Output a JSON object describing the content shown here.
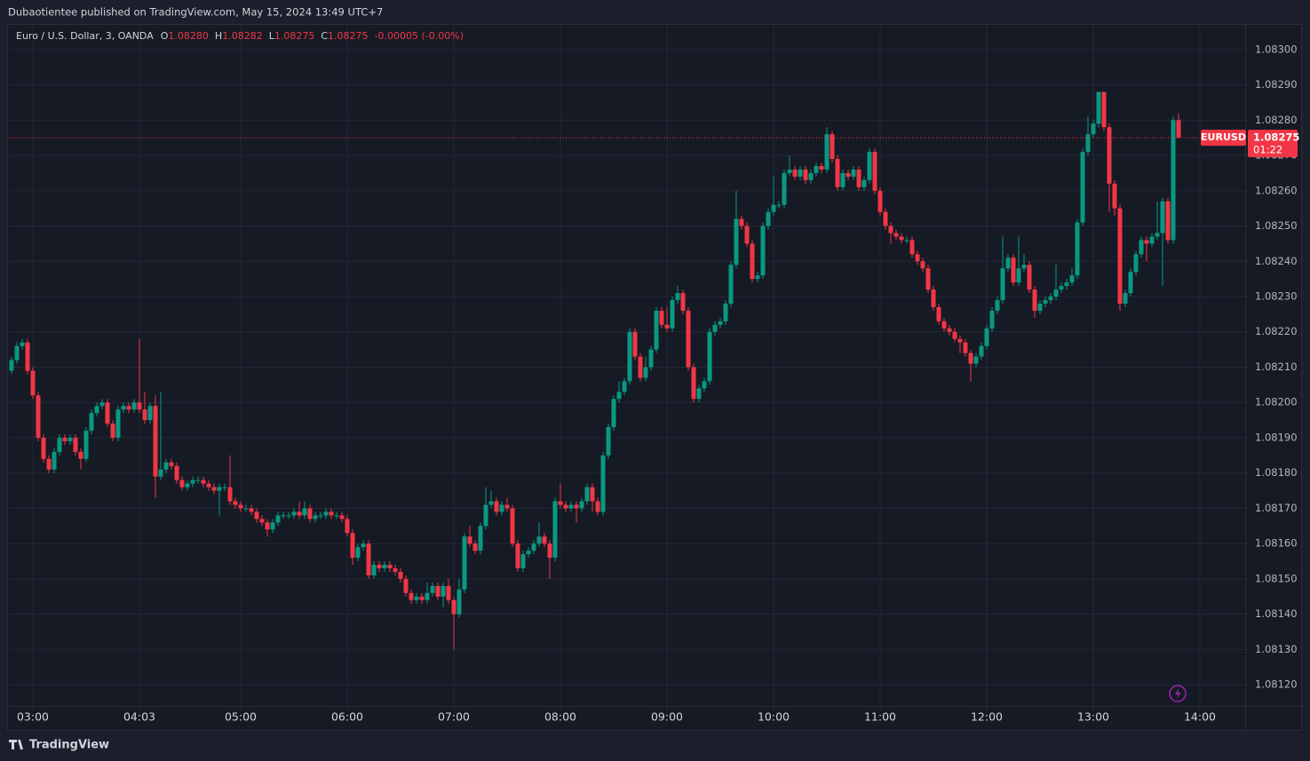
{
  "header": {
    "publisher": "Dubaotientee published on TradingView.com, May 15, 2024 13:49 UTC+7"
  },
  "chart_data": {
    "type": "candlestick",
    "title": "Euro / U.S. Dollar, 3, OANDA",
    "ohlc_legend": [
      {
        "label": "O",
        "value": "1.08280"
      },
      {
        "label": "H",
        "value": "1.08282"
      },
      {
        "label": "L",
        "value": "1.08275"
      },
      {
        "label": "C",
        "value": "1.08275"
      }
    ],
    "change": "-0.00005 (-0.00%)",
    "symbol": "EURUSD",
    "last_price": {
      "value": 1.08275,
      "label": "1.08275"
    },
    "countdown": "01:22",
    "up_color": "#089981",
    "down_color": "#f23645",
    "grid": true,
    "xlim": [
      -0.5,
      231.5
    ],
    "xticks": [
      {
        "value": 4,
        "label": "03:00"
      },
      {
        "value": 24,
        "label": "04:03"
      },
      {
        "value": 43,
        "label": "05:00"
      },
      {
        "value": 63,
        "label": "06:00"
      },
      {
        "value": 83,
        "label": "07:00"
      },
      {
        "value": 103,
        "label": "08:00"
      },
      {
        "value": 123,
        "label": "09:00"
      },
      {
        "value": 143,
        "label": "10:00"
      },
      {
        "value": 163,
        "label": "11:00"
      },
      {
        "value": 183,
        "label": "12:00"
      },
      {
        "value": 203,
        "label": "13:00"
      },
      {
        "value": 223,
        "label": "14:00"
      }
    ],
    "ylim": [
      1.08114,
      1.08307
    ],
    "yticks": [
      {
        "value": 1.0812,
        "label": "1.08120"
      },
      {
        "value": 1.0813,
        "label": "1.08130"
      },
      {
        "value": 1.0814,
        "label": "1.08140"
      },
      {
        "value": 1.0815,
        "label": "1.08150"
      },
      {
        "value": 1.0816,
        "label": "1.08160"
      },
      {
        "value": 1.0817,
        "label": "1.08170"
      },
      {
        "value": 1.0818,
        "label": "1.08180"
      },
      {
        "value": 1.0819,
        "label": "1.08190"
      },
      {
        "value": 1.082,
        "label": "1.08200"
      },
      {
        "value": 1.0821,
        "label": "1.08210"
      },
      {
        "value": 1.0822,
        "label": "1.08220"
      },
      {
        "value": 1.0823,
        "label": "1.08230"
      },
      {
        "value": 1.0824,
        "label": "1.08240"
      },
      {
        "value": 1.0825,
        "label": "1.08250"
      },
      {
        "value": 1.0826,
        "label": "1.08260"
      },
      {
        "value": 1.0827,
        "label": "1.08270"
      },
      {
        "value": 1.0828,
        "label": "1.08280"
      },
      {
        "value": 1.0829,
        "label": "1.08290"
      },
      {
        "value": 1.083,
        "label": "1.08300"
      }
    ],
    "open": [
      1.08209,
      1.08212,
      1.08216,
      1.08217,
      1.08209,
      1.08202,
      1.0819,
      1.08184,
      1.08181,
      1.08186,
      1.0819,
      1.08189,
      1.0819,
      1.08186,
      1.08184,
      1.08192,
      1.08197,
      1.08199,
      1.082,
      1.08194,
      1.0819,
      1.08198,
      1.08199,
      1.08198,
      1.082,
      1.08198,
      1.08195,
      1.08199,
      1.08179,
      1.08181,
      1.08183,
      1.08182,
      1.08178,
      1.08176,
      1.08177,
      1.08178,
      1.08178,
      1.08177,
      1.08176,
      1.08175,
      1.08176,
      1.08176,
      1.08172,
      1.08171,
      1.0817,
      1.0817,
      1.08169,
      1.08167,
      1.08166,
      1.08164,
      1.08166,
      1.08168,
      1.08168,
      1.08168,
      1.08169,
      1.08168,
      1.0817,
      1.08167,
      1.08168,
      1.08168,
      1.08169,
      1.08168,
      1.08168,
      1.08167,
      1.08163,
      1.08156,
      1.08159,
      1.0816,
      1.08151,
      1.08154,
      1.08153,
      1.08154,
      1.08153,
      1.08152,
      1.0815,
      1.08146,
      1.08144,
      1.08145,
      1.08144,
      1.08146,
      1.08148,
      1.08145,
      1.08148,
      1.08144,
      1.0814,
      1.08147,
      1.08162,
      1.0816,
      1.08158,
      1.08165,
      1.08171,
      1.08172,
      1.08169,
      1.08171,
      1.0817,
      1.0816,
      1.08153,
      1.08157,
      1.08158,
      1.0816,
      1.08162,
      1.0816,
      1.08156,
      1.08172,
      1.08171,
      1.0817,
      1.08171,
      1.0817,
      1.08172,
      1.08176,
      1.08172,
      1.08169,
      1.08185,
      1.08193,
      1.08201,
      1.08203,
      1.08206,
      1.0822,
      1.08213,
      1.08207,
      1.0821,
      1.08215,
      1.08226,
      1.08222,
      1.08221,
      1.08229,
      1.08231,
      1.08226,
      1.0821,
      1.08201,
      1.08204,
      1.08206,
      1.0822,
      1.08222,
      1.08223,
      1.08228,
      1.08239,
      1.08252,
      1.0825,
      1.08245,
      1.08235,
      1.08236,
      1.0825,
      1.08254,
      1.08256,
      1.08256,
      1.08265,
      1.08266,
      1.08264,
      1.08266,
      1.08263,
      1.08265,
      1.08267,
      1.08266,
      1.08276,
      1.08269,
      1.08261,
      1.08265,
      1.08264,
      1.08266,
      1.08261,
      1.08263,
      1.08271,
      1.0826,
      1.08254,
      1.0825,
      1.08248,
      1.08247,
      1.08246,
      1.08246,
      1.08242,
      1.0824,
      1.08238,
      1.08232,
      1.08227,
      1.08223,
      1.08221,
      1.0822,
      1.08218,
      1.08217,
      1.08214,
      1.08211,
      1.08213,
      1.08216,
      1.08221,
      1.08226,
      1.08229,
      1.08238,
      1.08241,
      1.08234,
      1.08238,
      1.08239,
      1.08232,
      1.08226,
      1.08228,
      1.08229,
      1.0823,
      1.08232,
      1.08233,
      1.08234,
      1.08236,
      1.08251,
      1.08271,
      1.08276,
      1.08279,
      1.08288,
      1.08278,
      1.08262,
      1.08255,
      1.08228,
      1.08231,
      1.08237,
      1.08242,
      1.08246,
      1.08245,
      1.08247,
      1.08248,
      1.08257,
      1.08246,
      1.0828
    ],
    "high": [
      1.08213,
      1.08217,
      1.08218,
      1.08218,
      1.0821,
      1.08203,
      1.08191,
      1.08185,
      1.08187,
      1.08191,
      1.08191,
      1.08191,
      1.08191,
      1.08187,
      1.08193,
      1.08198,
      1.082,
      1.08201,
      1.08201,
      1.08195,
      1.08199,
      1.082,
      1.082,
      1.08201,
      1.08218,
      1.08203,
      1.082,
      1.08202,
      1.08203,
      1.08184,
      1.08184,
      1.08183,
      1.08179,
      1.08178,
      1.08179,
      1.08179,
      1.08179,
      1.08178,
      1.08177,
      1.08177,
      1.08177,
      1.08185,
      1.08173,
      1.08172,
      1.08171,
      1.08171,
      1.0817,
      1.08168,
      1.08167,
      1.08167,
      1.08169,
      1.08169,
      1.08169,
      1.0817,
      1.08172,
      1.08172,
      1.08171,
      1.08169,
      1.08169,
      1.0817,
      1.0817,
      1.08169,
      1.08169,
      1.08168,
      1.08164,
      1.0816,
      1.08161,
      1.08161,
      1.08155,
      1.08155,
      1.08155,
      1.08155,
      1.08154,
      1.08153,
      1.08151,
      1.08147,
      1.08146,
      1.08146,
      1.08149,
      1.08149,
      1.08149,
      1.08149,
      1.0815,
      1.08145,
      1.0815,
      1.08163,
      1.08165,
      1.08161,
      1.08166,
      1.08176,
      1.08175,
      1.08173,
      1.08172,
      1.08173,
      1.08171,
      1.08161,
      1.08158,
      1.08159,
      1.08161,
      1.08166,
      1.08163,
      1.08161,
      1.08173,
      1.08177,
      1.08172,
      1.08172,
      1.08172,
      1.08173,
      1.08177,
      1.08177,
      1.08173,
      1.08186,
      1.08194,
      1.08202,
      1.08206,
      1.08207,
      1.08221,
      1.08221,
      1.08214,
      1.08213,
      1.08216,
      1.08227,
      1.08227,
      1.08227,
      1.0823,
      1.08233,
      1.08232,
      1.08227,
      1.08211,
      1.08205,
      1.08207,
      1.08221,
      1.08223,
      1.08224,
      1.08229,
      1.0824,
      1.0826,
      1.08253,
      1.08251,
      1.08246,
      1.08237,
      1.08251,
      1.08255,
      1.08264,
      1.08257,
      1.08266,
      1.0827,
      1.08267,
      1.08267,
      1.08267,
      1.08266,
      1.08268,
      1.08268,
      1.08278,
      1.08277,
      1.0827,
      1.08266,
      1.08266,
      1.08267,
      1.08267,
      1.08264,
      1.08272,
      1.08272,
      1.08261,
      1.08255,
      1.08251,
      1.08249,
      1.08248,
      1.08247,
      1.08247,
      1.08243,
      1.08241,
      1.08239,
      1.08233,
      1.08228,
      1.08224,
      1.08222,
      1.08221,
      1.08219,
      1.08218,
      1.08215,
      1.08214,
      1.08217,
      1.08222,
      1.08227,
      1.0823,
      1.08247,
      1.08242,
      1.08242,
      1.08247,
      1.08242,
      1.0824,
      1.08233,
      1.08229,
      1.0823,
      1.08231,
      1.08239,
      1.08234,
      1.08235,
      1.08238,
      1.08252,
      1.08272,
      1.08281,
      1.0828,
      1.08288,
      1.08288,
      1.08279,
      1.08263,
      1.08256,
      1.08232,
      1.08238,
      1.08243,
      1.08247,
      1.08247,
      1.08248,
      1.08257,
      1.08258,
      1.08258,
      1.08281,
      1.08282
    ],
    "low": [
      1.08208,
      1.08211,
      1.08215,
      1.08208,
      1.08201,
      1.08189,
      1.08183,
      1.0818,
      1.0818,
      1.08185,
      1.08188,
      1.08188,
      1.08185,
      1.08181,
      1.08183,
      1.08191,
      1.08196,
      1.08198,
      1.08193,
      1.08189,
      1.08189,
      1.08197,
      1.08197,
      1.08197,
      1.08197,
      1.08194,
      1.08194,
      1.08173,
      1.08178,
      1.0818,
      1.08181,
      1.08177,
      1.08175,
      1.08175,
      1.08176,
      1.08177,
      1.08176,
      1.08175,
      1.08174,
      1.08168,
      1.08175,
      1.08171,
      1.0817,
      1.08169,
      1.08169,
      1.08168,
      1.08166,
      1.08165,
      1.08162,
      1.08163,
      1.08165,
      1.08167,
      1.08167,
      1.08167,
      1.08167,
      1.08167,
      1.08166,
      1.08166,
      1.08167,
      1.08167,
      1.08167,
      1.08167,
      1.08166,
      1.08162,
      1.08154,
      1.08155,
      1.08158,
      1.0815,
      1.0815,
      1.08152,
      1.08152,
      1.08152,
      1.08151,
      1.08149,
      1.08145,
      1.08143,
      1.08143,
      1.08143,
      1.08143,
      1.08145,
      1.08144,
      1.08142,
      1.08143,
      1.0813,
      1.08139,
      1.08146,
      1.08159,
      1.08157,
      1.08157,
      1.08164,
      1.0817,
      1.08168,
      1.08168,
      1.08169,
      1.08159,
      1.08152,
      1.08152,
      1.08156,
      1.08157,
      1.08159,
      1.08159,
      1.0815,
      1.08155,
      1.0817,
      1.08169,
      1.08169,
      1.08166,
      1.08169,
      1.08171,
      1.08169,
      1.08168,
      1.08168,
      1.08184,
      1.08192,
      1.082,
      1.08202,
      1.08205,
      1.08212,
      1.08206,
      1.08206,
      1.08209,
      1.08214,
      1.08221,
      1.0822,
      1.0822,
      1.08228,
      1.08225,
      1.08209,
      1.082,
      1.082,
      1.08203,
      1.08205,
      1.08219,
      1.08221,
      1.08222,
      1.08227,
      1.08238,
      1.08249,
      1.08244,
      1.08234,
      1.08234,
      1.08235,
      1.08249,
      1.08253,
      1.08255,
      1.08255,
      1.08264,
      1.08263,
      1.08263,
      1.08262,
      1.08262,
      1.08264,
      1.08265,
      1.08265,
      1.08268,
      1.0826,
      1.0826,
      1.08263,
      1.08263,
      1.0826,
      1.0826,
      1.08262,
      1.08259,
      1.08253,
      1.08249,
      1.08245,
      1.08246,
      1.08245,
      1.08245,
      1.08241,
      1.08239,
      1.08237,
      1.08231,
      1.08226,
      1.08222,
      1.0822,
      1.08219,
      1.08217,
      1.08214,
      1.08213,
      1.08206,
      1.0821,
      1.08212,
      1.08215,
      1.0822,
      1.08225,
      1.08228,
      1.08237,
      1.08233,
      1.08233,
      1.08237,
      1.08231,
      1.08224,
      1.08225,
      1.08227,
      1.08228,
      1.08229,
      1.08231,
      1.08232,
      1.08233,
      1.08235,
      1.0825,
      1.0827,
      1.08275,
      1.08278,
      1.08277,
      1.08254,
      1.08253,
      1.08226,
      1.08227,
      1.0823,
      1.08236,
      1.08241,
      1.0824,
      1.08244,
      1.08246,
      1.08233,
      1.08245,
      1.08245,
      1.08275
    ],
    "close": [
      1.08212,
      1.08216,
      1.08217,
      1.08209,
      1.08202,
      1.0819,
      1.08184,
      1.08181,
      1.08186,
      1.0819,
      1.08189,
      1.0819,
      1.08186,
      1.08184,
      1.08192,
      1.08197,
      1.08199,
      1.082,
      1.08194,
      1.0819,
      1.08198,
      1.08199,
      1.08198,
      1.082,
      1.08198,
      1.08195,
      1.08199,
      1.08179,
      1.08181,
      1.08183,
      1.08182,
      1.08178,
      1.08176,
      1.08177,
      1.08178,
      1.08178,
      1.08177,
      1.08176,
      1.08175,
      1.08176,
      1.08176,
      1.08172,
      1.08171,
      1.0817,
      1.0817,
      1.08169,
      1.08167,
      1.08166,
      1.08164,
      1.08166,
      1.08168,
      1.08168,
      1.08168,
      1.08169,
      1.08168,
      1.0817,
      1.08167,
      1.08168,
      1.08168,
      1.08169,
      1.08168,
      1.08168,
      1.08167,
      1.08163,
      1.08156,
      1.08159,
      1.0816,
      1.08151,
      1.08154,
      1.08153,
      1.08154,
      1.08153,
      1.08152,
      1.0815,
      1.08146,
      1.08144,
      1.08145,
      1.08144,
      1.08146,
      1.08148,
      1.08145,
      1.08148,
      1.08144,
      1.0814,
      1.08147,
      1.08162,
      1.0816,
      1.08158,
      1.08165,
      1.08171,
      1.08172,
      1.08169,
      1.08171,
      1.0817,
      1.0816,
      1.08153,
      1.08157,
      1.08158,
      1.0816,
      1.08162,
      1.0816,
      1.08156,
      1.08172,
      1.08171,
      1.0817,
      1.08171,
      1.0817,
      1.08172,
      1.08176,
      1.08172,
      1.08169,
      1.08185,
      1.08193,
      1.08201,
      1.08203,
      1.08206,
      1.0822,
      1.08213,
      1.08207,
      1.0821,
      1.08215,
      1.08226,
      1.08222,
      1.08221,
      1.08229,
      1.08231,
      1.08226,
      1.0821,
      1.08201,
      1.08204,
      1.08206,
      1.0822,
      1.08222,
      1.08223,
      1.08228,
      1.08239,
      1.08252,
      1.0825,
      1.08245,
      1.08235,
      1.08236,
      1.0825,
      1.08254,
      1.08256,
      1.08256,
      1.08265,
      1.08266,
      1.08264,
      1.08266,
      1.08263,
      1.08265,
      1.08267,
      1.08266,
      1.08276,
      1.08269,
      1.08261,
      1.08265,
      1.08264,
      1.08266,
      1.08261,
      1.08263,
      1.08271,
      1.0826,
      1.08254,
      1.0825,
      1.08248,
      1.08247,
      1.08246,
      1.08246,
      1.08242,
      1.0824,
      1.08238,
      1.08232,
      1.08227,
      1.08223,
      1.08221,
      1.0822,
      1.08218,
      1.08217,
      1.08214,
      1.08211,
      1.08213,
      1.08216,
      1.08221,
      1.08226,
      1.08229,
      1.08238,
      1.08241,
      1.08234,
      1.08238,
      1.08239,
      1.08232,
      1.08226,
      1.08228,
      1.08229,
      1.0823,
      1.08232,
      1.08233,
      1.08234,
      1.08236,
      1.08251,
      1.08271,
      1.08276,
      1.08279,
      1.08288,
      1.08278,
      1.08262,
      1.08255,
      1.08228,
      1.08231,
      1.08237,
      1.08242,
      1.08246,
      1.08245,
      1.08247,
      1.08248,
      1.08257,
      1.08246,
      1.0828,
      1.08275
    ]
  },
  "footer": {
    "brand": "TradingView"
  }
}
